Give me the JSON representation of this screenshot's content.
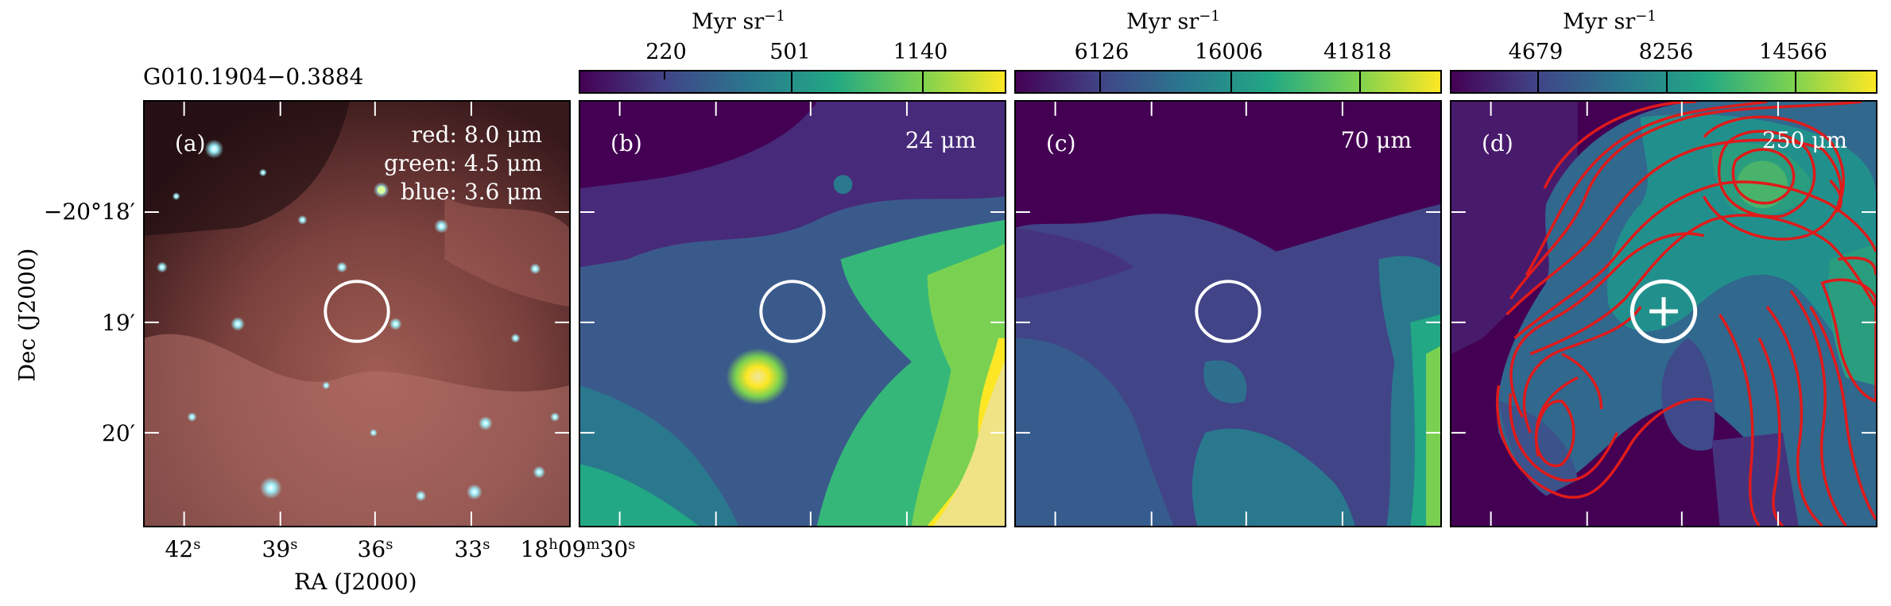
{
  "source_name": "G010.1904−0.3884",
  "panels": [
    {
      "label": "(a)",
      "bands": [
        "red: 8.0 μm",
        "green: 4.5 μm",
        "blue: 3.6 μm"
      ]
    },
    {
      "label": "(b)",
      "band": "24 μm"
    },
    {
      "label": "(c)",
      "band": "70 μm"
    },
    {
      "label": "(d)",
      "band": "250 μm"
    }
  ],
  "colorbars": [
    {
      "unit": "Myr sr",
      "exp": "−1",
      "ticks": [
        "220",
        "501",
        "1140"
      ]
    },
    {
      "unit": "Myr sr",
      "exp": "−1",
      "ticks": [
        "6126",
        "16006",
        "41818"
      ]
    },
    {
      "unit": "Myr sr",
      "exp": "−1",
      "ticks": [
        "4679",
        "8256",
        "14566"
      ]
    }
  ],
  "axes": {
    "xlabel": "RA (J2000)",
    "ylabel": "Dec (J2000)",
    "xticks": [
      {
        "main": "42",
        "sup": "s"
      },
      {
        "main": "39",
        "sup": "s"
      },
      {
        "main": "36",
        "sup": "s"
      },
      {
        "main": "33",
        "sup": "s"
      },
      {
        "main": "18",
        "sup": "h",
        "main2": "09",
        "sup2": "m",
        "main3": "30",
        "sup3": "s"
      }
    ],
    "yticks": [
      "−20°18′",
      "19′",
      "20′"
    ]
  },
  "colors": {
    "contour": "#e01a1a",
    "ellipse": "#ffffff",
    "viridis_low": "#440154",
    "viridis_mid": "#21908d",
    "viridis_high": "#fde725"
  }
}
